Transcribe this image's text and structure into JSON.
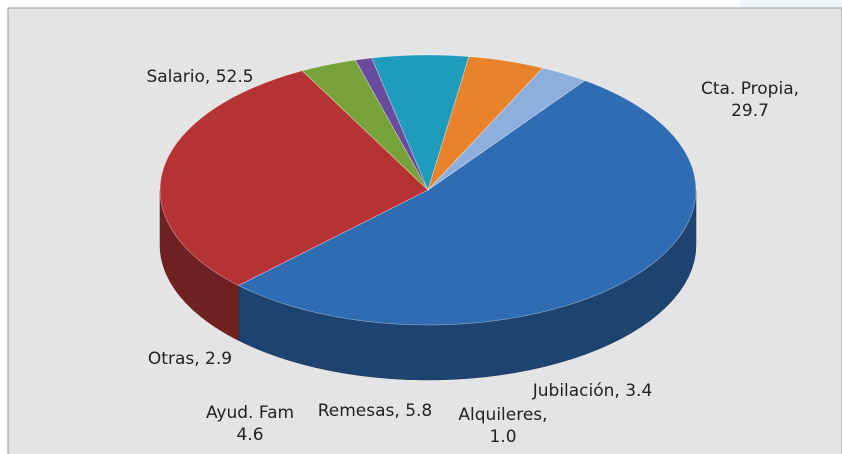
{
  "chart_data": {
    "type": "pie",
    "values": [
      52.5,
      29.7,
      3.4,
      1.0,
      5.8,
      4.6,
      2.9
    ],
    "value_labels": [
      "Salario, 52.5",
      "Cta. Propia, 29.7",
      "Jubilación, 3.4",
      "Alquileres, 1.0",
      "Remesas, 5.8",
      "Ayud. Fam 4.6",
      "Otras, 2.9"
    ],
    "colors": [
      "#2f6cb4",
      "#b63333",
      "#77a23a",
      "#6a4b9e",
      "#1e9bbd",
      "#e8832b",
      "#8eafdc"
    ]
  }
}
